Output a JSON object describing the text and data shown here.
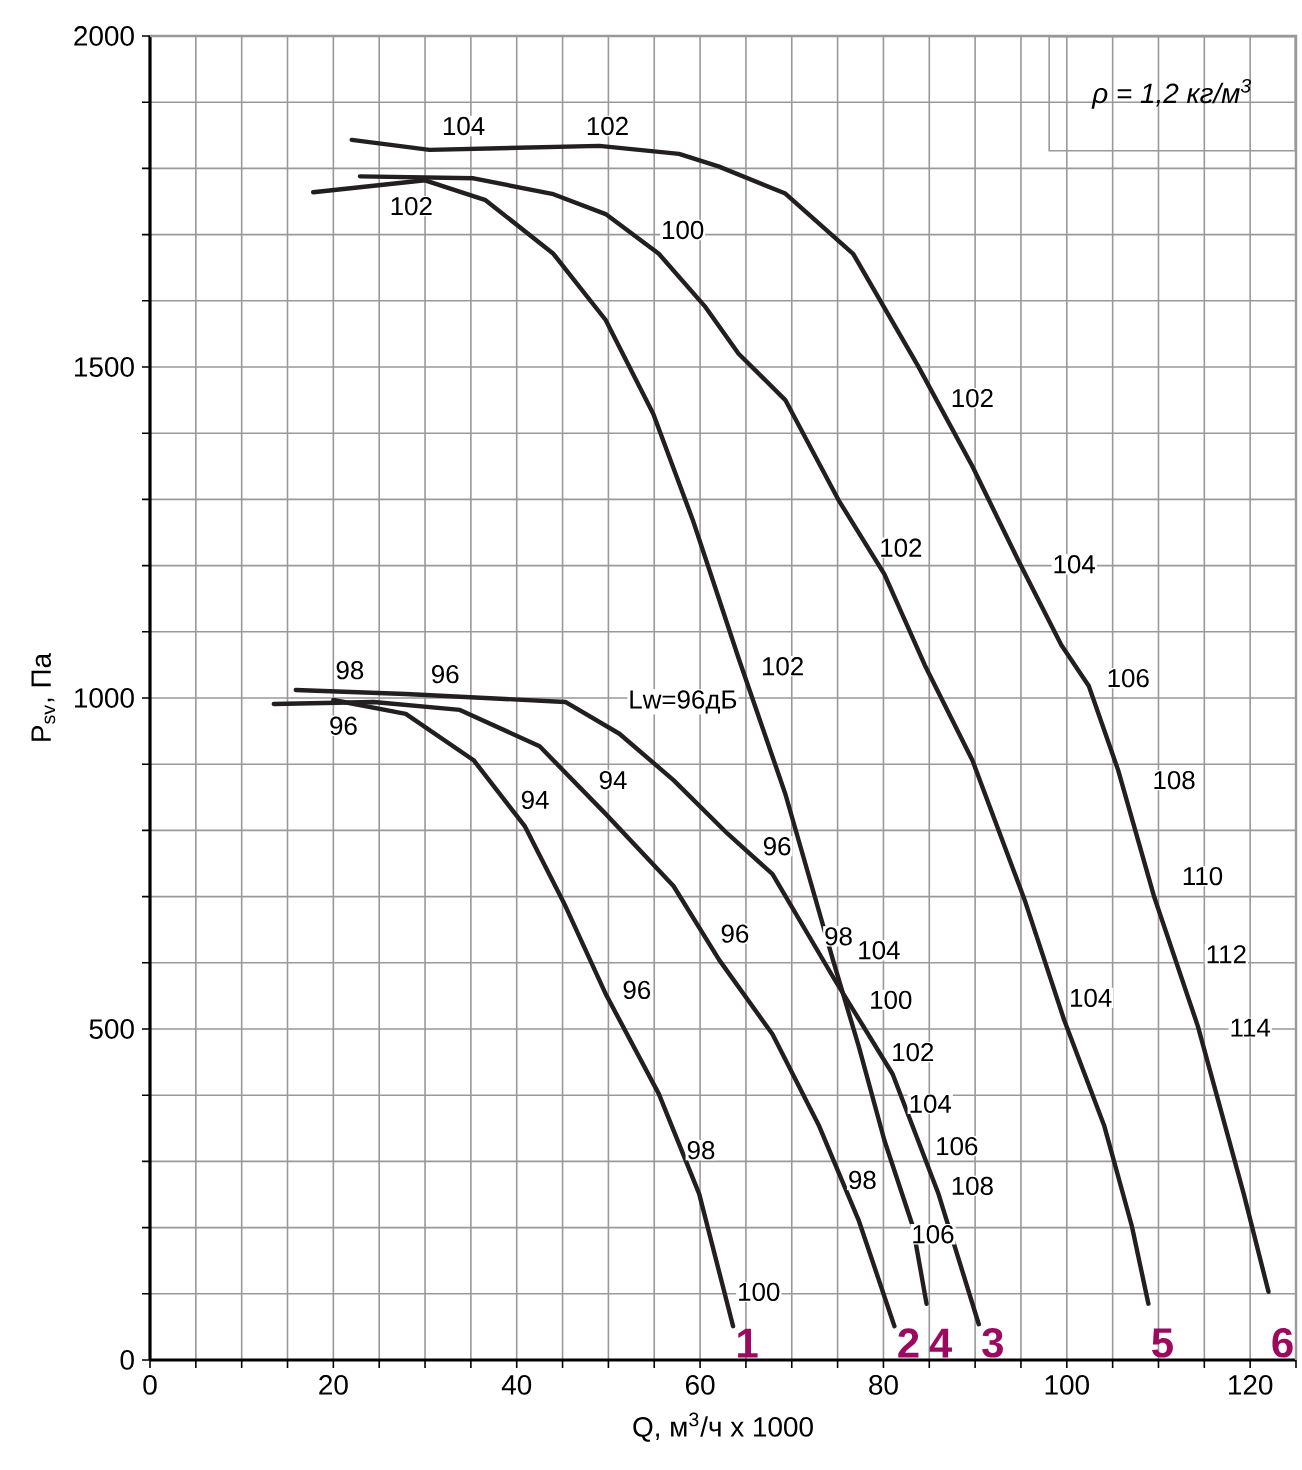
{
  "chart_data": {
    "type": "line",
    "xlabel": "Q, м$^{3}$/ч x 1000",
    "ylabel": "P$_{sv}$, Па",
    "xlim": [
      0,
      125
    ],
    "ylim": [
      0,
      2000
    ],
    "xticks": [
      0,
      {
        "value": 5,
        "label": null
      },
      {
        "value": 10,
        "label": null
      },
      {
        "value": 15,
        "label": null
      },
      20,
      {
        "value": 25,
        "label": null
      },
      {
        "value": 30,
        "label": null
      },
      {
        "value": 35,
        "label": null
      },
      40,
      {
        "value": 45,
        "label": null
      },
      {
        "value": 50,
        "label": null
      },
      {
        "value": 55,
        "label": null
      },
      60,
      {
        "value": 65,
        "label": null
      },
      {
        "value": 70,
        "label": null
      },
      {
        "value": 75,
        "label": null
      },
      80,
      {
        "value": 85,
        "label": null
      },
      {
        "value": 90,
        "label": null
      },
      {
        "value": 95,
        "label": null
      },
      100,
      {
        "value": 105,
        "label": null
      },
      {
        "value": 110,
        "label": null
      },
      {
        "value": 115,
        "label": null
      },
      120,
      {
        "value": 125,
        "label": null
      }
    ],
    "yticks": [
      0,
      {
        "value": 100,
        "label": null
      },
      {
        "value": 200,
        "label": null
      },
      {
        "value": 300,
        "label": null
      },
      {
        "value": 400,
        "label": null
      },
      500,
      {
        "value": 600,
        "label": null
      },
      {
        "value": 700,
        "label": null
      },
      {
        "value": 800,
        "label": null
      },
      {
        "value": 900,
        "label": null
      },
      1000,
      {
        "value": 1100,
        "label": null
      },
      {
        "value": 1200,
        "label": null
      },
      {
        "value": 1300,
        "label": null
      },
      {
        "value": 1400,
        "label": null
      },
      1500,
      {
        "value": 1600,
        "label": null
      },
      {
        "value": 1700,
        "label": null
      },
      {
        "value": 1800,
        "label": null
      },
      {
        "value": 1900,
        "label": null
      },
      2000
    ],
    "grid": true,
    "marker": "none",
    "line_style": "solid",
    "series": [
      {
        "name": "1",
        "color": "#231f20",
        "x": [
          20,
          27.9,
          35.3,
          40.9,
          45.3,
          49.7,
          55.5,
          59.9,
          63.6
        ],
        "values": [
          997,
          976,
          906,
          806,
          686,
          553,
          402,
          251,
          51
        ]
      },
      {
        "name": "2",
        "color": "#231f20",
        "x": [
          13.5,
          24.4,
          33.8,
          42.5,
          49.7,
          57.1,
          62.1,
          67.9,
          73,
          77.3,
          81.2
        ],
        "values": [
          991,
          994,
          982,
          927,
          825,
          716,
          604,
          492,
          353,
          211,
          51
        ]
      },
      {
        "name": "3",
        "color": "#231f20",
        "x": [
          15.9,
          27.9,
          45.3,
          51.2,
          57.1,
          63,
          67.9,
          74.7,
          81,
          86,
          90.4
        ],
        "values": [
          1012,
          1006,
          994,
          946,
          876,
          795,
          734,
          574,
          432,
          251,
          54
        ]
      },
      {
        "name": "4",
        "color": "#231f20",
        "x": [
          17.8,
          30,
          36.6,
          44,
          49.7,
          54.9,
          59.2,
          62.1,
          64.2,
          69.3,
          74.5,
          77.3,
          80.1,
          83.2,
          84.7
        ],
        "values": [
          1764,
          1782,
          1752,
          1671,
          1571,
          1429,
          1269,
          1148,
          1060,
          855,
          604,
          474,
          332,
          202,
          85
        ]
      },
      {
        "name": "5",
        "color": "#231f20",
        "x": [
          22.9,
          35.3,
          44,
          49.7,
          55.5,
          60.5,
          64.2,
          69.3,
          75.1,
          80.1,
          84.5,
          89.7,
          95.4,
          99.7,
          104.1,
          107.1,
          108.9
        ],
        "values": [
          1788,
          1785,
          1761,
          1731,
          1671,
          1592,
          1520,
          1450,
          1299,
          1187,
          1050,
          906,
          695,
          514,
          353,
          202,
          85
        ]
      },
      {
        "name": "6",
        "color": "#231f20",
        "x": [
          22,
          30.5,
          49,
          57.7,
          62,
          69.3,
          76.7,
          83.8,
          89.7,
          94.7,
          99.4,
          102.4,
          105.6,
          109.5,
          114.3,
          119.3,
          122
        ],
        "values": [
          1843,
          1828,
          1834,
          1822,
          1803,
          1762,
          1671,
          1501,
          1350,
          1208,
          1080,
          1018,
          891,
          701,
          504,
          251,
          103
        ]
      }
    ],
    "annotations": [
      "ρ = 1,2 кг/м$^{3}$",
      {
        "text": "104",
        "x": 34.2,
        "y": 1864
      },
      {
        "text": "102",
        "x": 49.9,
        "y": 1864
      },
      {
        "text": "102",
        "x": 28.5,
        "y": 1743
      },
      {
        "text": "100",
        "x": 58.1,
        "y": 1707
      },
      {
        "text": "102",
        "x": 89.7,
        "y": 1453
      },
      {
        "text": "102",
        "x": 81.9,
        "y": 1227
      },
      {
        "text": "104",
        "x": 100.8,
        "y": 1202
      },
      {
        "text": "102",
        "x": 69,
        "y": 1048
      },
      {
        "text": "106",
        "x": 106.7,
        "y": 1030
      },
      {
        "text": "98",
        "x": 21.8,
        "y": 1042
      },
      {
        "text": "96",
        "x": 32.2,
        "y": 1036
      },
      {
        "text": "96",
        "x": 21.1,
        "y": 958
      },
      "Lw=96дБ",
      {
        "text": "94",
        "x": 50.5,
        "y": 876
      },
      {
        "text": "94",
        "x": 42,
        "y": 846
      },
      {
        "text": "108",
        "x": 111.7,
        "y": 876
      },
      {
        "text": "96",
        "x": 68.4,
        "y": 776
      },
      {
        "text": "110",
        "x": 114.8,
        "y": 731
      },
      {
        "text": "98",
        "x": 75.1,
        "y": 640
      },
      {
        "text": "104",
        "x": 79.5,
        "y": 619
      },
      {
        "text": "112",
        "x": 117.4,
        "y": 613
      },
      {
        "text": "96",
        "x": 63.8,
        "y": 644
      },
      {
        "text": "100",
        "x": 80.8,
        "y": 544
      },
      {
        "text": "96",
        "x": 53.1,
        "y": 559
      },
      {
        "text": "104",
        "x": 102.6,
        "y": 547
      },
      {
        "text": "114",
        "x": 120,
        "y": 502
      },
      {
        "text": "102",
        "x": 83.2,
        "y": 465
      },
      {
        "text": "104",
        "x": 85.1,
        "y": 387
      },
      {
        "text": "106",
        "x": 88,
        "y": 323
      },
      {
        "text": "108",
        "x": 89.7,
        "y": 263
      },
      {
        "text": "98",
        "x": 60.1,
        "y": 317
      },
      {
        "text": "98",
        "x": 77.7,
        "y": 272
      },
      {
        "text": "106",
        "x": 85.4,
        "y": 190
      },
      {
        "text": "100",
        "x": 66.4,
        "y": 103
      }
    ]
  }
}
